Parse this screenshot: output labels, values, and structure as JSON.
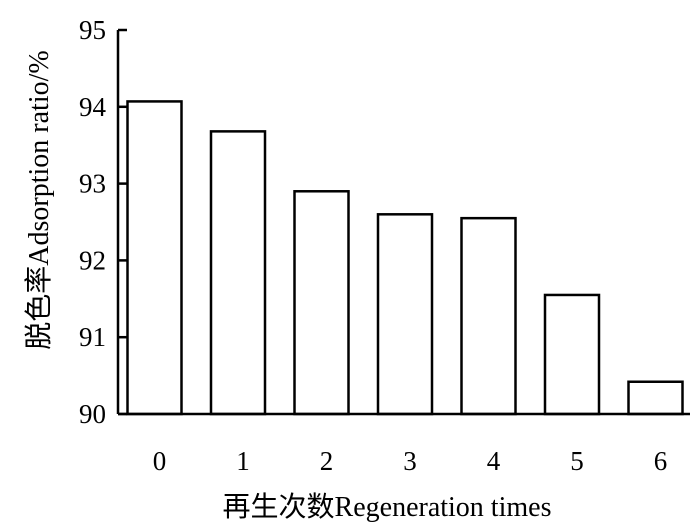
{
  "chart_data": {
    "type": "bar",
    "title": "",
    "xlabel": "再生次数Regeneration times",
    "ylabel": "脱色率Adsorption ratio/%",
    "categories": [
      "0",
      "1",
      "2",
      "3",
      "4",
      "5",
      "6"
    ],
    "values": [
      94.07,
      93.68,
      92.9,
      92.6,
      92.55,
      91.55,
      90.42
    ],
    "ylim": [
      90,
      95
    ],
    "yticks": [
      "90",
      "91",
      "92",
      "93",
      "94",
      "95"
    ],
    "grid": false,
    "bar_fill": "#ffffff",
    "bar_stroke": "#000000"
  }
}
